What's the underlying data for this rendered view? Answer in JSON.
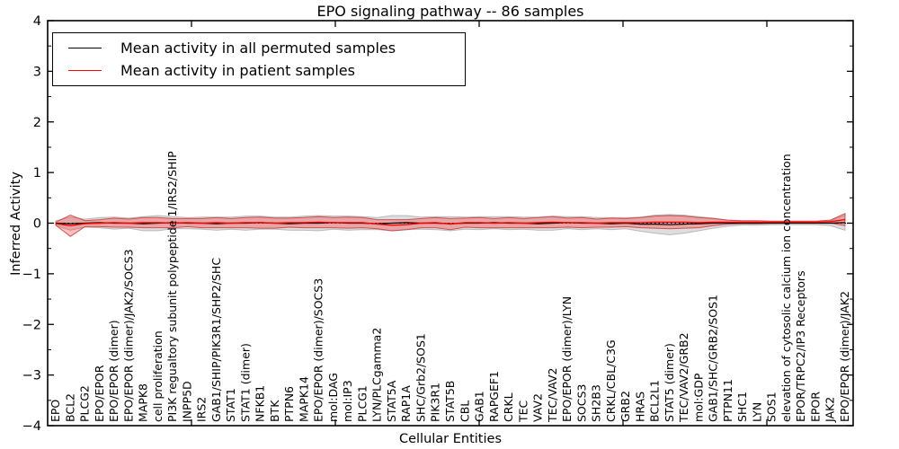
{
  "figure": {
    "title": "EPO signaling pathway -- 86 samples",
    "xlabel": "Cellular Entities",
    "ylabel": "Inferred Activity"
  },
  "legend": {
    "items": [
      {
        "label": "Mean activity in all permuted samples",
        "color": "#000000"
      },
      {
        "label": "Mean activity in patient samples",
        "color": "#ff0000"
      }
    ]
  },
  "axes": {
    "ylim": [
      -4,
      4
    ],
    "y_tick_labels": [
      "4",
      "3",
      "2",
      "1",
      "0",
      "−1",
      "−2",
      "−3",
      "−4"
    ],
    "y_tick_values": [
      4,
      3,
      2,
      1,
      0,
      -1,
      -2,
      -3,
      -4
    ]
  },
  "chart_data": {
    "type": "line",
    "title": "EPO signaling pathway -- 86 samples",
    "xlabel": "Cellular Entities",
    "ylabel": "Inferred Activity",
    "ylim": [
      -4,
      4
    ],
    "yticks": [
      -4,
      -3,
      -2,
      -1,
      0,
      1,
      2,
      3,
      4
    ],
    "grid": false,
    "zero_line": "black dotted",
    "legend_position": "upper left",
    "categories": [
      "EPO",
      "BCL2",
      "PLCG2",
      "EPO/EPOR",
      "EPO/EPOR (dimer)",
      "EPO/EPOR (dimer)/JAK2/SOCS3",
      "MAPK8",
      "cell proliferation",
      "PI3K regualtory subunit polypeptide 1/IRS2/SHIP",
      "INPP5D",
      "IRS2",
      "GAB1/SHIP/PIK3R1/SHP2/SHC",
      "STAT1",
      "STAT1 (dimer)",
      "NFKB1",
      "BTK",
      "PTPN6",
      "MAPK14",
      "EPO/EPOR (dimer)/SOCS3",
      "mol:DAG",
      "mol:IP3",
      "PLCG1",
      "LYN/PLCgamma2",
      "STAT5A",
      "RAP1A",
      "SHC/Grb2/SOS1",
      "PIK3R1",
      "STAT5B",
      "CBL",
      "GAB1",
      "RAPGEF1",
      "CRKL",
      "TEC",
      "VAV2",
      "TEC/VAV2",
      "EPO/EPOR (dimer)/LYN",
      "SOCS3",
      "SH2B3",
      "CRKL/CBL/C3G",
      "GRB2",
      "HRAS",
      "BCL2L1",
      "STAT5 (dimer)",
      "TEC/VAV2/GRB2",
      "mol:GDP",
      "GAB1/SHC/GRB2/SOS1",
      "PTPN11",
      "SHC1",
      "LYN",
      "SOS1",
      "elevation of cytosolic calcium ion concentration",
      "EPOR/TRPC2/IP3 Receptors",
      "EPOR",
      "JAK2",
      "EPO/EPOR (dimer)/JAK2"
    ],
    "series": [
      {
        "name": "Mean activity in all permuted samples",
        "color": "#000000",
        "band_color": "rgba(0,0,0,0.13)",
        "values": [
          0.0,
          -0.01,
          0.0,
          0.01,
          0.0,
          0.0,
          -0.01,
          0.0,
          0.01,
          0.0,
          0.0,
          -0.01,
          0.0,
          0.0,
          0.01,
          0.0,
          -0.01,
          0.0,
          0.0,
          0.01,
          0.0,
          0.0,
          -0.01,
          0.0,
          0.01,
          0.0,
          0.0,
          -0.01,
          0.0,
          0.0,
          0.01,
          0.0,
          0.0,
          -0.01,
          0.0,
          0.01,
          0.0,
          0.0,
          -0.01,
          0.0,
          -0.02,
          -0.02,
          -0.03,
          -0.02,
          -0.01,
          0.0,
          0.0,
          0.0,
          0.0,
          0.0,
          0.0,
          0.0,
          0.0,
          0.0,
          0.01
        ],
        "band_halfwidth": [
          0.05,
          0.13,
          0.08,
          0.1,
          0.12,
          0.1,
          0.14,
          0.15,
          0.12,
          0.11,
          0.12,
          0.13,
          0.12,
          0.14,
          0.13,
          0.12,
          0.13,
          0.14,
          0.15,
          0.13,
          0.14,
          0.13,
          0.12,
          0.15,
          0.14,
          0.12,
          0.13,
          0.14,
          0.12,
          0.13,
          0.12,
          0.13,
          0.12,
          0.13,
          0.14,
          0.12,
          0.13,
          0.11,
          0.12,
          0.11,
          0.14,
          0.18,
          0.2,
          0.18,
          0.14,
          0.1,
          0.06,
          0.04,
          0.04,
          0.03,
          0.03,
          0.03,
          0.03,
          0.05,
          0.15
        ]
      },
      {
        "name": "Mean activity in patient samples",
        "color": "#ff0000",
        "band_color": "rgba(255,0,0,0.25)",
        "values": [
          -0.01,
          -0.05,
          -0.01,
          0.0,
          0.01,
          0.0,
          0.01,
          0.01,
          0.0,
          0.01,
          0.0,
          0.01,
          0.0,
          0.01,
          0.01,
          0.0,
          0.01,
          0.01,
          0.02,
          0.01,
          0.01,
          0.01,
          -0.02,
          -0.04,
          -0.03,
          0.0,
          0.01,
          -0.02,
          0.01,
          0.01,
          0.0,
          0.01,
          0.0,
          0.01,
          0.02,
          0.01,
          0.01,
          0.0,
          0.01,
          0.01,
          0.01,
          0.02,
          0.02,
          0.02,
          0.01,
          0.02,
          0.02,
          0.02,
          0.02,
          0.02,
          0.02,
          0.02,
          0.02,
          0.03,
          0.07
        ],
        "band_halfwidth": [
          0.03,
          0.21,
          0.06,
          0.07,
          0.09,
          0.08,
          0.1,
          0.1,
          0.09,
          0.08,
          0.09,
          0.1,
          0.09,
          0.1,
          0.11,
          0.1,
          0.09,
          0.1,
          0.11,
          0.1,
          0.11,
          0.1,
          0.09,
          0.11,
          0.1,
          0.09,
          0.1,
          0.11,
          0.09,
          0.1,
          0.09,
          0.1,
          0.09,
          0.1,
          0.11,
          0.09,
          0.1,
          0.08,
          0.09,
          0.08,
          0.1,
          0.12,
          0.13,
          0.12,
          0.1,
          0.07,
          0.04,
          0.03,
          0.03,
          0.02,
          0.02,
          0.02,
          0.02,
          0.03,
          0.12
        ]
      }
    ]
  }
}
